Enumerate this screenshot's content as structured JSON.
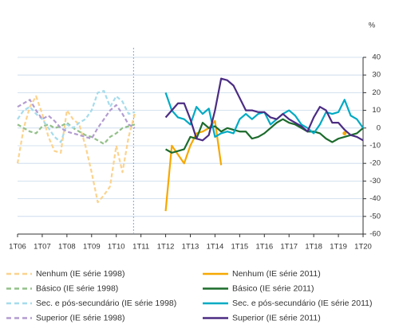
{
  "chart_data": {
    "type": "line",
    "y_unit_label": "%",
    "categories": [
      "1T06",
      null,
      null,
      null,
      "1T07",
      null,
      null,
      null,
      "1T08",
      null,
      null,
      null,
      "1T09",
      null,
      null,
      null,
      "1T10",
      null,
      null,
      null,
      "1T11",
      null,
      null,
      null,
      "1T12",
      null,
      null,
      null,
      "1T13",
      null,
      null,
      null,
      "1T14",
      null,
      null,
      null,
      "1T15",
      null,
      null,
      null,
      "1T16",
      null,
      null,
      null,
      "1T17",
      null,
      null,
      null,
      "1T18",
      null,
      null,
      null,
      "1T19",
      null,
      null,
      null,
      "1T20"
    ],
    "ylim": [
      -60,
      40
    ],
    "yticks": [
      -60,
      -50,
      -40,
      -30,
      -20,
      -10,
      0,
      10,
      20,
      30,
      40
    ],
    "grid": true,
    "legend": "bottom",
    "series": [
      {
        "name": "Nenhum (IE série 1998)",
        "color": "#fbd38e",
        "dashed": true,
        "values": [
          -20,
          0,
          12,
          18,
          8,
          -5,
          -13,
          -14,
          10,
          5,
          2,
          -10,
          -25,
          -42,
          -38,
          -33,
          -10,
          -25,
          -5,
          8,
          null,
          null,
          null,
          null,
          null,
          null,
          null,
          null,
          null,
          null,
          null,
          null,
          null,
          null,
          null,
          null,
          null,
          null,
          null,
          null,
          null,
          null,
          null,
          null,
          null,
          null,
          null,
          null,
          null,
          null,
          null,
          null,
          null,
          null,
          null,
          null,
          null
        ]
      },
      {
        "name": "Nenhum (IE série 2011)",
        "color": "#f6a800",
        "dashed": false,
        "values": [
          null,
          null,
          null,
          null,
          null,
          null,
          null,
          null,
          null,
          null,
          null,
          null,
          null,
          null,
          null,
          null,
          null,
          null,
          null,
          null,
          null,
          null,
          null,
          null,
          -47,
          -10,
          -15,
          -20,
          -10,
          -3,
          -2,
          0,
          4,
          -21,
          null,
          null,
          null,
          null,
          null,
          null,
          null,
          null,
          null,
          null,
          null,
          null,
          null,
          null,
          null,
          null,
          null,
          null,
          null,
          -3,
          null,
          null,
          null
        ]
      },
      {
        "name": "Básico (IE série 1998)",
        "color": "#93c08a",
        "dashed": true,
        "values": [
          2,
          0,
          -2,
          -3,
          1,
          2,
          0,
          1,
          3,
          0,
          -2,
          -4,
          -5,
          -7,
          -9,
          -5,
          -3,
          0,
          1,
          2,
          null,
          null,
          null,
          null,
          null,
          null,
          null,
          null,
          null,
          null,
          null,
          null,
          null,
          null,
          null,
          null,
          null,
          null,
          null,
          null,
          null,
          null,
          null,
          null,
          null,
          null,
          null,
          null,
          null,
          null,
          null,
          null,
          null,
          null,
          null,
          null,
          null
        ]
      },
      {
        "name": "Básico (IE série 2011)",
        "color": "#1c6b2c",
        "dashed": false,
        "values": [
          null,
          null,
          null,
          null,
          null,
          null,
          null,
          null,
          null,
          null,
          null,
          null,
          null,
          null,
          null,
          null,
          null,
          null,
          null,
          null,
          null,
          null,
          null,
          null,
          -12,
          -14,
          -13,
          -12,
          -5,
          -6,
          3,
          0,
          1,
          -2,
          0,
          -1,
          -2,
          -2,
          -6,
          -5,
          -3,
          0,
          3,
          5,
          3,
          2,
          0,
          -2,
          -2,
          -3,
          -6,
          -8,
          -6,
          -5,
          -4,
          -3,
          0
        ]
      },
      {
        "name": "Sec. e pós-secundário (IE série 1998)",
        "color": "#a6dcec",
        "dashed": true,
        "values": [
          5,
          10,
          12,
          8,
          5,
          0,
          -5,
          -8,
          2,
          0,
          3,
          5,
          10,
          20,
          21,
          12,
          18,
          15,
          8,
          9,
          null,
          null,
          null,
          null,
          null,
          null,
          null,
          null,
          null,
          null,
          null,
          null,
          null,
          null,
          null,
          null,
          null,
          null,
          null,
          null,
          null,
          null,
          null,
          null,
          null,
          null,
          null,
          null,
          null,
          null,
          null,
          null,
          null,
          null,
          null,
          null,
          null
        ]
      },
      {
        "name": "Sec. e pós-secundário (IE série 2011)",
        "color": "#00aac3",
        "dashed": false,
        "values": [
          null,
          null,
          null,
          null,
          null,
          null,
          null,
          null,
          null,
          null,
          null,
          null,
          null,
          null,
          null,
          null,
          null,
          null,
          null,
          null,
          null,
          null,
          null,
          null,
          20,
          10,
          6,
          5,
          2,
          12,
          8,
          11,
          -5,
          -3,
          -2,
          -3,
          5,
          8,
          5,
          8,
          9,
          2,
          5,
          8,
          10,
          7,
          2,
          0,
          -3,
          2,
          9,
          8,
          9,
          16,
          7,
          5,
          0
        ]
      },
      {
        "name": "Superior (IE série 1998)",
        "color": "#b39cd0",
        "dashed": true,
        "values": [
          12,
          14,
          16,
          10,
          5,
          7,
          4,
          0,
          -2,
          -3,
          -4,
          -5,
          -6,
          0,
          5,
          10,
          13,
          8,
          2,
          0,
          null,
          null,
          null,
          null,
          null,
          null,
          null,
          null,
          null,
          null,
          null,
          null,
          null,
          null,
          null,
          null,
          null,
          null,
          null,
          null,
          null,
          null,
          null,
          null,
          null,
          null,
          null,
          null,
          null,
          null,
          null,
          null,
          null,
          null,
          null,
          null,
          null
        ]
      },
      {
        "name": "Superior (IE série 2011)",
        "color": "#4b2c83",
        "dashed": false,
        "values": [
          null,
          null,
          null,
          null,
          null,
          null,
          null,
          null,
          null,
          null,
          null,
          null,
          null,
          null,
          null,
          null,
          null,
          null,
          null,
          null,
          null,
          null,
          null,
          null,
          6,
          10,
          14,
          14,
          5,
          -6,
          -7,
          -4,
          10,
          28,
          27,
          24,
          17,
          10,
          10,
          9,
          9,
          6,
          5,
          8,
          5,
          3,
          1,
          -2,
          6,
          12,
          10,
          3,
          3,
          -1,
          -4,
          -5,
          -7
        ]
      }
    ]
  }
}
